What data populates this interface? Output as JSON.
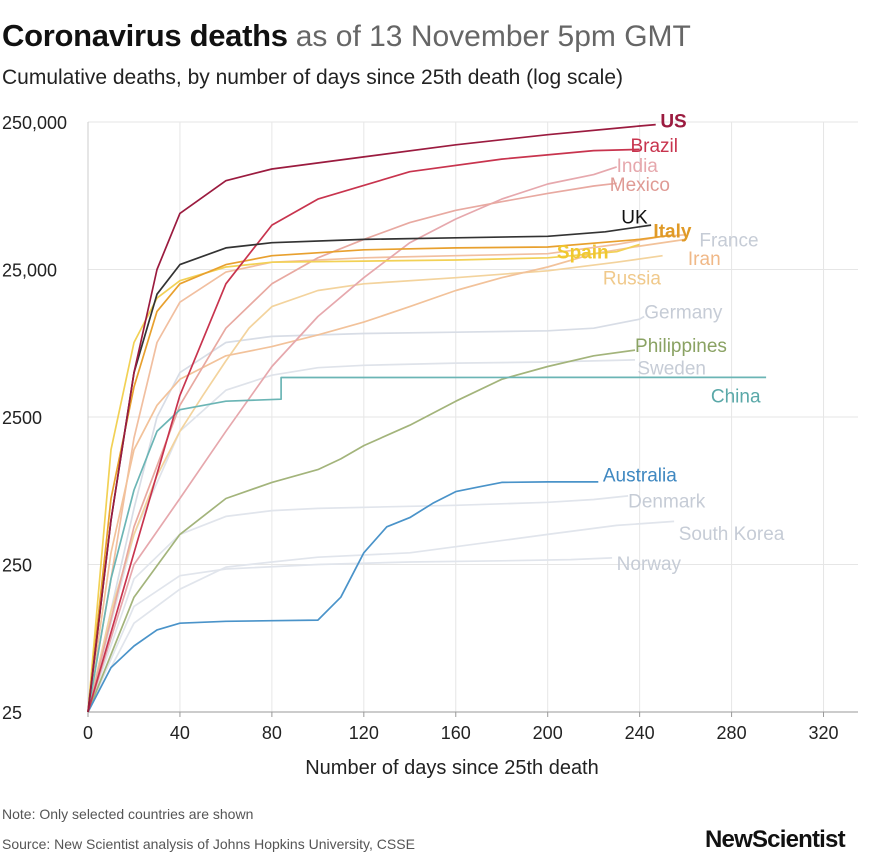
{
  "header": {
    "title": "Coronavirus deaths",
    "title_suffix": "as of 13 November 5pm GMT",
    "subtitle": "Cumulative deaths, by number of days since 25th death (log scale)"
  },
  "footer": {
    "note": "Note: Only selected countries are shown",
    "source": "Source: New Scientist analysis of Johns Hopkins University, CSSE",
    "logo": "NewScientist"
  },
  "chart_data": {
    "type": "line",
    "title": "Coronavirus deaths",
    "xlabel": "Number of days since 25th death",
    "ylabel": "",
    "x_scale": "linear",
    "y_scale": "log",
    "xlim": [
      0,
      335
    ],
    "ylim": [
      25,
      250000
    ],
    "x_ticks": [
      0,
      40,
      80,
      120,
      160,
      200,
      240,
      280,
      320
    ],
    "x_tick_labels": [
      "0",
      "40",
      "80",
      "120",
      "160",
      "200",
      "240",
      "280",
      "320"
    ],
    "y_ticks": [
      25,
      250,
      2500,
      25000,
      250000
    ],
    "y_tick_labels": [
      "25",
      "250",
      "2500",
      "25,000",
      "250,000"
    ],
    "grid": true,
    "series": [
      {
        "name": "US",
        "color": "#9b1b3f",
        "label_color": "#9b1b3f",
        "points": [
          [
            0,
            25
          ],
          [
            10,
            500
          ],
          [
            20,
            5000
          ],
          [
            30,
            25000
          ],
          [
            40,
            60000
          ],
          [
            60,
            100000
          ],
          [
            80,
            120000
          ],
          [
            120,
            145000
          ],
          [
            160,
            175000
          ],
          [
            200,
            205000
          ],
          [
            240,
            235000
          ],
          [
            247,
            240000
          ]
        ]
      },
      {
        "name": "Brazil",
        "color": "#c8344e",
        "label_color": "#c8344e",
        "points": [
          [
            0,
            25
          ],
          [
            20,
            300
          ],
          [
            40,
            3500
          ],
          [
            60,
            20000
          ],
          [
            80,
            50000
          ],
          [
            100,
            75000
          ],
          [
            140,
            115000
          ],
          [
            180,
            140000
          ],
          [
            220,
            160000
          ],
          [
            240,
            163000
          ]
        ]
      },
      {
        "name": "India",
        "color": "#e6a8ad",
        "label_color": "#e6a8ad",
        "points": [
          [
            0,
            25
          ],
          [
            20,
            250
          ],
          [
            40,
            700
          ],
          [
            60,
            2000
          ],
          [
            80,
            5500
          ],
          [
            100,
            12000
          ],
          [
            120,
            22000
          ],
          [
            140,
            38000
          ],
          [
            160,
            55000
          ],
          [
            180,
            75000
          ],
          [
            200,
            95000
          ],
          [
            220,
            110000
          ],
          [
            230,
            124000
          ]
        ]
      },
      {
        "name": "Mexico",
        "color": "#e8a9a1",
        "label_color": "#df9a94",
        "points": [
          [
            0,
            25
          ],
          [
            20,
            450
          ],
          [
            40,
            3000
          ],
          [
            60,
            10000
          ],
          [
            80,
            20000
          ],
          [
            100,
            30000
          ],
          [
            120,
            40000
          ],
          [
            140,
            52000
          ],
          [
            160,
            63000
          ],
          [
            180,
            72000
          ],
          [
            200,
            82000
          ],
          [
            220,
            92000
          ],
          [
            230,
            96000
          ]
        ]
      },
      {
        "name": "UK",
        "color": "#333333",
        "label_color": "#111111",
        "points": [
          [
            0,
            25
          ],
          [
            10,
            500
          ],
          [
            20,
            5000
          ],
          [
            30,
            17000
          ],
          [
            40,
            27000
          ],
          [
            60,
            35000
          ],
          [
            80,
            38000
          ],
          [
            120,
            40000
          ],
          [
            160,
            41000
          ],
          [
            200,
            42000
          ],
          [
            225,
            45000
          ],
          [
            245,
            50000
          ]
        ]
      },
      {
        "name": "Italy",
        "color": "#e8a02e",
        "label_color": "#e09a27",
        "points": [
          [
            0,
            25
          ],
          [
            10,
            700
          ],
          [
            20,
            4000
          ],
          [
            30,
            13000
          ],
          [
            40,
            20000
          ],
          [
            60,
            27000
          ],
          [
            80,
            31000
          ],
          [
            120,
            34000
          ],
          [
            160,
            35000
          ],
          [
            200,
            35500
          ],
          [
            240,
            40000
          ],
          [
            255,
            43000
          ]
        ]
      },
      {
        "name": "France",
        "color": "#f1bfa0",
        "label_color": "#c6ccd6",
        "points": [
          [
            0,
            25
          ],
          [
            10,
            200
          ],
          [
            20,
            1800
          ],
          [
            30,
            8000
          ],
          [
            40,
            15000
          ],
          [
            60,
            24000
          ],
          [
            80,
            28000
          ],
          [
            120,
            30000
          ],
          [
            160,
            31000
          ],
          [
            200,
            32000
          ],
          [
            230,
            37000
          ],
          [
            250,
            42000
          ],
          [
            260,
            43000
          ]
        ]
      },
      {
        "name": "Iran",
        "color": "#f2c29a",
        "label_color": "#f0b887",
        "points": [
          [
            0,
            25
          ],
          [
            10,
            300
          ],
          [
            20,
            1500
          ],
          [
            30,
            3000
          ],
          [
            40,
            4500
          ],
          [
            60,
            6500
          ],
          [
            80,
            7500
          ],
          [
            100,
            9000
          ],
          [
            120,
            11000
          ],
          [
            140,
            14000
          ],
          [
            160,
            18000
          ],
          [
            180,
            22000
          ],
          [
            200,
            26000
          ],
          [
            220,
            32000
          ],
          [
            240,
            36000
          ],
          [
            260,
            40000
          ]
        ]
      },
      {
        "name": "Spain",
        "color": "#f2d155",
        "label_color": "#f0c830",
        "points": [
          [
            0,
            25
          ],
          [
            10,
            1500
          ],
          [
            20,
            8000
          ],
          [
            30,
            16000
          ],
          [
            40,
            21000
          ],
          [
            60,
            26000
          ],
          [
            80,
            28000
          ],
          [
            120,
            28500
          ],
          [
            160,
            29000
          ],
          [
            200,
            30000
          ],
          [
            230,
            33000
          ],
          [
            240,
            37000
          ]
        ]
      },
      {
        "name": "Russia",
        "color": "#f3d39d",
        "label_color": "#f0c98b",
        "points": [
          [
            0,
            25
          ],
          [
            10,
            120
          ],
          [
            20,
            400
          ],
          [
            30,
            1000
          ],
          [
            40,
            2000
          ],
          [
            50,
            3500
          ],
          [
            60,
            6000
          ],
          [
            70,
            10000
          ],
          [
            80,
            14000
          ],
          [
            100,
            18000
          ],
          [
            120,
            20000
          ],
          [
            160,
            22000
          ],
          [
            200,
            24500
          ],
          [
            230,
            28000
          ],
          [
            250,
            31000
          ]
        ]
      },
      {
        "name": "Germany",
        "color": "#d8dde6",
        "label_color": "#c6ccd6",
        "points": [
          [
            0,
            25
          ],
          [
            20,
            600
          ],
          [
            30,
            2500
          ],
          [
            40,
            5000
          ],
          [
            60,
            8000
          ],
          [
            80,
            8800
          ],
          [
            120,
            9200
          ],
          [
            160,
            9400
          ],
          [
            200,
            9600
          ],
          [
            220,
            10000
          ],
          [
            240,
            11500
          ],
          [
            242,
            12000
          ]
        ]
      },
      {
        "name": "Philippines",
        "color": "#a3b47b",
        "label_color": "#8aa263",
        "points": [
          [
            0,
            25
          ],
          [
            20,
            150
          ],
          [
            40,
            400
          ],
          [
            60,
            700
          ],
          [
            80,
            900
          ],
          [
            100,
            1100
          ],
          [
            110,
            1300
          ],
          [
            120,
            1600
          ],
          [
            140,
            2200
          ],
          [
            160,
            3200
          ],
          [
            180,
            4500
          ],
          [
            200,
            5500
          ],
          [
            220,
            6500
          ],
          [
            238,
            7100
          ]
        ]
      },
      {
        "name": "Sweden",
        "color": "#dfe3ea",
        "label_color": "#c6ccd6",
        "points": [
          [
            0,
            25
          ],
          [
            20,
            400
          ],
          [
            40,
            2000
          ],
          [
            60,
            3800
          ],
          [
            80,
            4800
          ],
          [
            100,
            5400
          ],
          [
            120,
            5600
          ],
          [
            160,
            5800
          ],
          [
            200,
            5900
          ],
          [
            220,
            6000
          ],
          [
            238,
            6100
          ]
        ]
      },
      {
        "name": "China",
        "color": "#6bb5b5",
        "label_color": "#5aa8a8",
        "points": [
          [
            0,
            25
          ],
          [
            10,
            200
          ],
          [
            20,
            800
          ],
          [
            30,
            2000
          ],
          [
            40,
            2800
          ],
          [
            60,
            3200
          ],
          [
            84,
            3300
          ],
          [
            84,
            4630
          ],
          [
            120,
            4634
          ],
          [
            200,
            4640
          ],
          [
            295,
            4640
          ]
        ]
      },
      {
        "name": "Australia",
        "color": "#4a93c9",
        "label_color": "#3f88c1",
        "points": [
          [
            0,
            25
          ],
          [
            10,
            50
          ],
          [
            20,
            70
          ],
          [
            30,
            90
          ],
          [
            40,
            100
          ],
          [
            60,
            103
          ],
          [
            80,
            104
          ],
          [
            100,
            105
          ],
          [
            110,
            150
          ],
          [
            120,
            300
          ],
          [
            130,
            450
          ],
          [
            140,
            520
          ],
          [
            150,
            650
          ],
          [
            160,
            780
          ],
          [
            170,
            840
          ],
          [
            180,
            900
          ],
          [
            200,
            907
          ],
          [
            222,
            907
          ]
        ]
      },
      {
        "name": "Denmark",
        "color": "#e1e5ec",
        "label_color": "#c6ccd6",
        "points": [
          [
            0,
            25
          ],
          [
            20,
            200
          ],
          [
            40,
            400
          ],
          [
            60,
            530
          ],
          [
            80,
            580
          ],
          [
            100,
            600
          ],
          [
            140,
            620
          ],
          [
            160,
            630
          ],
          [
            200,
            660
          ],
          [
            220,
            690
          ],
          [
            235,
            730
          ]
        ]
      },
      {
        "name": "South Korea",
        "color": "#e1e5ec",
        "label_color": "#c6ccd6",
        "points": [
          [
            0,
            25
          ],
          [
            20,
            100
          ],
          [
            40,
            170
          ],
          [
            60,
            240
          ],
          [
            80,
            260
          ],
          [
            100,
            280
          ],
          [
            140,
            300
          ],
          [
            160,
            330
          ],
          [
            200,
            400
          ],
          [
            230,
            460
          ],
          [
            255,
            490
          ]
        ]
      },
      {
        "name": "Norway",
        "color": "#e1e5ec",
        "label_color": "#c6ccd6",
        "points": [
          [
            0,
            25
          ],
          [
            20,
            130
          ],
          [
            40,
            210
          ],
          [
            60,
            233
          ],
          [
            100,
            250
          ],
          [
            140,
            260
          ],
          [
            180,
            265
          ],
          [
            210,
            270
          ],
          [
            228,
            277
          ]
        ]
      }
    ],
    "labels": [
      {
        "series": "US",
        "text": "US",
        "x": 249,
        "y": 255000,
        "weight": "bold"
      },
      {
        "series": "Brazil",
        "text": "Brazil",
        "x": 236,
        "y": 175000,
        "weight": "normal"
      },
      {
        "series": "India",
        "text": "India",
        "x": 230,
        "y": 128000,
        "weight": "normal"
      },
      {
        "series": "Mexico",
        "text": "Mexico",
        "x": 227,
        "y": 95000,
        "weight": "normal"
      },
      {
        "series": "UK",
        "text": "UK",
        "x": 232,
        "y": 57000,
        "weight": "normal"
      },
      {
        "series": "Italy",
        "text": "Italy",
        "x": 246,
        "y": 46000,
        "weight": "bold"
      },
      {
        "series": "France",
        "text": "France",
        "x": 266,
        "y": 40000,
        "weight": "normal"
      },
      {
        "series": "Iran",
        "text": "Iran",
        "x": 261,
        "y": 30000,
        "weight": "normal"
      },
      {
        "series": "Spain",
        "text": "Spain",
        "x": 204,
        "y": 33000,
        "weight": "bold"
      },
      {
        "series": "Russia",
        "text": "Russia",
        "x": 224,
        "y": 22000,
        "weight": "normal"
      },
      {
        "series": "Germany",
        "text": "Germany",
        "x": 242,
        "y": 13000,
        "weight": "normal"
      },
      {
        "series": "Philippines",
        "text": "Philippines",
        "x": 238,
        "y": 7700,
        "weight": "normal"
      },
      {
        "series": "Sweden",
        "text": "Sweden",
        "x": 239,
        "y": 5400,
        "weight": "normal"
      },
      {
        "series": "China",
        "text": "China",
        "x": 271,
        "y": 3500,
        "weight": "normal"
      },
      {
        "series": "Australia",
        "text": "Australia",
        "x": 224,
        "y": 1020,
        "weight": "normal"
      },
      {
        "series": "Denmark",
        "text": "Denmark",
        "x": 235,
        "y": 680,
        "weight": "normal"
      },
      {
        "series": "South Korea",
        "text": "South Korea",
        "x": 257,
        "y": 410,
        "weight": "normal"
      },
      {
        "series": "Norway",
        "text": "Norway",
        "x": 230,
        "y": 255,
        "weight": "normal"
      }
    ]
  }
}
